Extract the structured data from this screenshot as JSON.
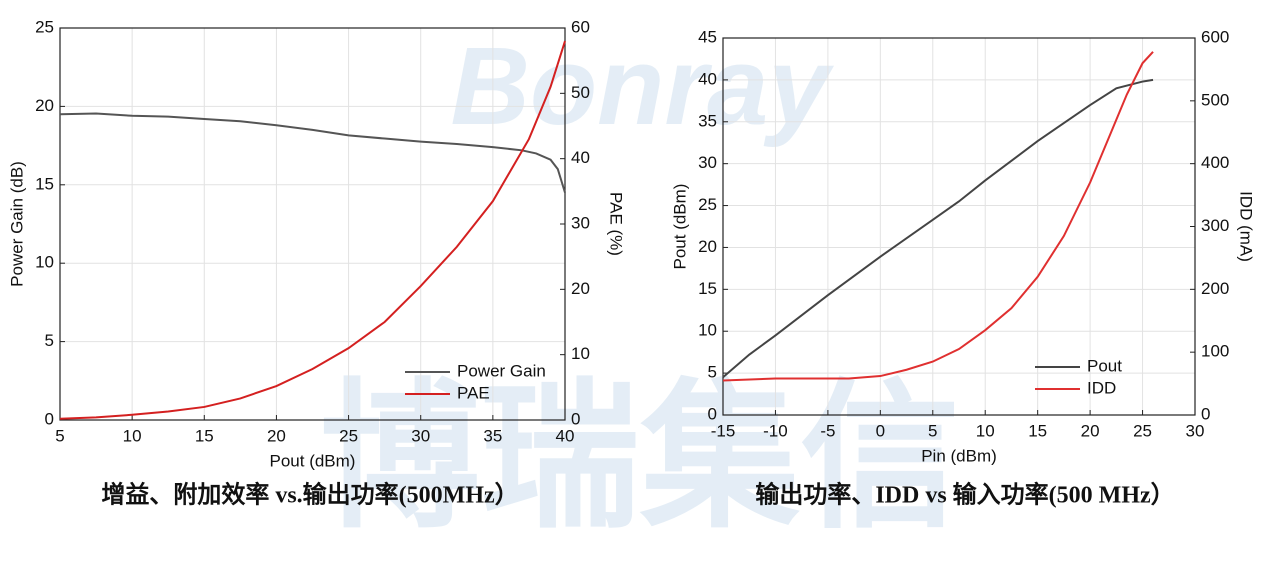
{
  "watermark": {
    "logo": "Bonray",
    "text": "博瑞集信"
  },
  "chart_data": [
    {
      "type": "line",
      "caption": "增益、附加效率 vs.输出功率(500MHz）",
      "xlabel": "Pout (dBm)",
      "ylabel": "Power Gain (dB)",
      "y2label": "PAE (%)",
      "xlim": [
        5,
        40
      ],
      "xticks": [
        5,
        10,
        15,
        20,
        25,
        30,
        35,
        40
      ],
      "ylim": [
        0,
        25
      ],
      "yticks": [
        0,
        5,
        10,
        15,
        20,
        25
      ],
      "y2lim": [
        0,
        60
      ],
      "y2ticks": [
        0,
        10,
        20,
        30,
        40,
        50,
        60
      ],
      "grid": true,
      "legend": "lower right",
      "series": [
        {
          "name": "Power Gain",
          "color": "#555555",
          "x": [
            5,
            7.5,
            10,
            12.5,
            15,
            17.5,
            20,
            22.5,
            25,
            27.5,
            30,
            32.5,
            35,
            37,
            38,
            39,
            39.5,
            40
          ],
          "values": [
            19.5,
            19.55,
            19.4,
            19.35,
            19.2,
            19.05,
            18.8,
            18.5,
            18.15,
            17.95,
            17.75,
            17.6,
            17.4,
            17.2,
            17.0,
            16.6,
            16.0,
            14.5
          ]
        },
        {
          "name": "PAE",
          "color": "#d42020",
          "axis": "y2",
          "x": [
            5,
            7.5,
            10,
            12.5,
            15,
            17.5,
            20,
            22.5,
            25,
            27.5,
            30,
            32.5,
            35,
            37.5,
            39,
            40
          ],
          "values": [
            0.2,
            0.4,
            0.8,
            1.3,
            2,
            3.3,
            5.2,
            7.8,
            11,
            15,
            20.5,
            26.5,
            33.5,
            43,
            51,
            58
          ]
        }
      ]
    },
    {
      "type": "line",
      "caption": "输出功率、IDD vs  输入功率(500 MHz）",
      "xlabel": "Pin (dBm)",
      "ylabel": "Pout (dBm)",
      "y2label": "IDD (mA)",
      "xlim": [
        -15,
        30
      ],
      "xticks": [
        -15,
        -10,
        -5,
        0,
        5,
        10,
        15,
        20,
        25,
        30
      ],
      "ylim": [
        0,
        45
      ],
      "yticks": [
        0,
        5,
        10,
        15,
        20,
        25,
        30,
        35,
        40,
        45
      ],
      "y2lim": [
        0,
        600
      ],
      "y2ticks": [
        0,
        100,
        200,
        300,
        400,
        500,
        600
      ],
      "grid": true,
      "legend": "lower right",
      "series": [
        {
          "name": "Pout",
          "color": "#444444",
          "x": [
            -15,
            -12.5,
            -10,
            -5,
            0,
            5,
            7.5,
            10,
            15,
            20,
            22.5,
            25,
            26
          ],
          "values": [
            4.5,
            7.2,
            9.5,
            14.3,
            18.9,
            23.3,
            25.5,
            28,
            32.7,
            37,
            39,
            39.8,
            40
          ]
        },
        {
          "name": "IDD",
          "color": "#e03030",
          "axis": "y2",
          "x": [
            -15,
            -10,
            -5,
            -3,
            0,
            2.5,
            5,
            7.5,
            10,
            12.5,
            15,
            17.5,
            20,
            22,
            23.5,
            25,
            26
          ],
          "values": [
            55,
            58,
            58,
            58,
            62,
            72,
            85,
            105,
            135,
            170,
            220,
            285,
            370,
            450,
            510,
            560,
            578
          ]
        }
      ]
    }
  ]
}
